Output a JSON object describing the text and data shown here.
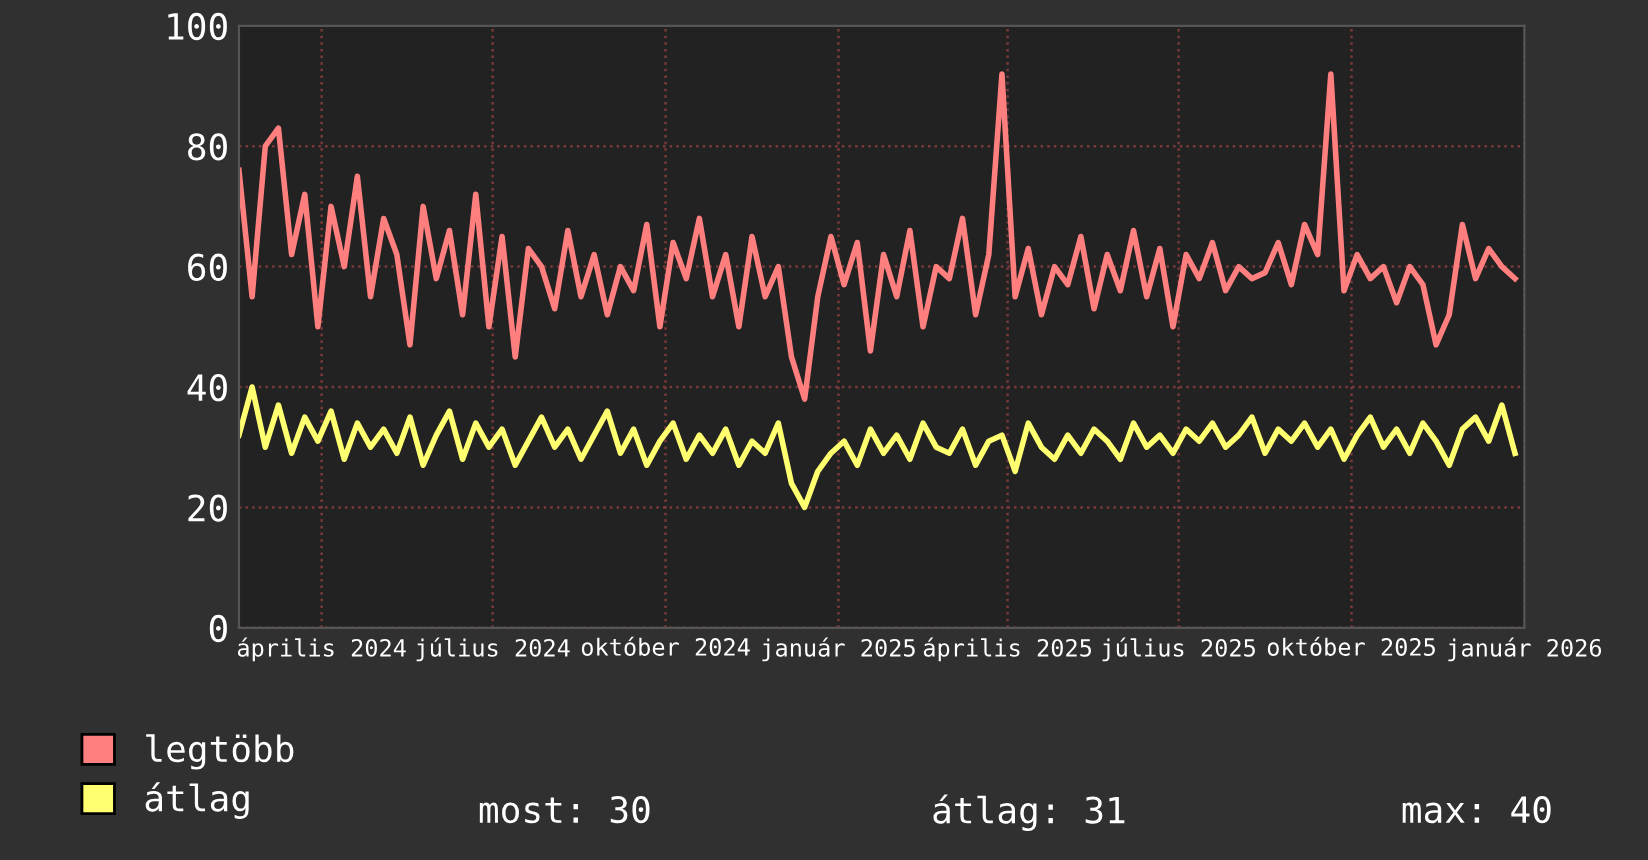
{
  "chart_data": {
    "type": "line",
    "x": [
      "2024-02-17",
      "2024-02-24",
      "2024-03-02",
      "2024-03-09",
      "2024-03-16",
      "2024-03-23",
      "2024-03-30",
      "2024-04-06",
      "2024-04-13",
      "2024-04-20",
      "2024-04-27",
      "2024-05-04",
      "2024-05-11",
      "2024-05-18",
      "2024-05-25",
      "2024-06-01",
      "2024-06-08",
      "2024-06-15",
      "2024-06-22",
      "2024-06-29",
      "2024-07-06",
      "2024-07-13",
      "2024-07-20",
      "2024-07-27",
      "2024-08-03",
      "2024-08-10",
      "2024-08-17",
      "2024-08-24",
      "2024-08-31",
      "2024-09-07",
      "2024-09-14",
      "2024-09-21",
      "2024-09-28",
      "2024-10-05",
      "2024-10-12",
      "2024-10-19",
      "2024-10-26",
      "2024-11-02",
      "2024-11-09",
      "2024-11-16",
      "2024-11-23",
      "2024-11-30",
      "2024-12-07",
      "2024-12-14",
      "2024-12-21",
      "2024-12-28",
      "2025-01-04",
      "2025-01-11",
      "2025-01-18",
      "2025-01-25",
      "2025-02-01",
      "2025-02-08",
      "2025-02-15",
      "2025-02-22",
      "2025-03-01",
      "2025-03-08",
      "2025-03-15",
      "2025-03-22",
      "2025-03-29",
      "2025-04-05",
      "2025-04-12",
      "2025-04-19",
      "2025-04-26",
      "2025-05-03",
      "2025-05-10",
      "2025-05-17",
      "2025-05-24",
      "2025-05-31",
      "2025-06-07",
      "2025-06-14",
      "2025-06-21",
      "2025-06-28",
      "2025-07-05",
      "2025-07-12",
      "2025-07-19",
      "2025-07-26",
      "2025-08-02",
      "2025-08-09",
      "2025-08-16",
      "2025-08-23",
      "2025-08-30",
      "2025-09-06",
      "2025-09-13",
      "2025-09-20",
      "2025-09-27",
      "2025-10-04",
      "2025-10-11",
      "2025-10-18",
      "2025-10-25",
      "2025-11-01",
      "2025-11-08",
      "2025-11-15",
      "2025-11-22",
      "2025-11-29",
      "2025-12-06",
      "2025-12-13",
      "2025-12-20",
      "2025-12-27"
    ],
    "series": [
      {
        "name": "legtöbb",
        "color": "#ff7f7f",
        "values": [
          76,
          55,
          80,
          83,
          62,
          72,
          50,
          70,
          60,
          75,
          55,
          68,
          62,
          47,
          70,
          58,
          66,
          52,
          72,
          50,
          65,
          45,
          63,
          60,
          53,
          66,
          55,
          62,
          52,
          60,
          56,
          67,
          50,
          64,
          58,
          68,
          55,
          62,
          50,
          65,
          55,
          60,
          45,
          38,
          55,
          65,
          57,
          64,
          46,
          62,
          55,
          66,
          50,
          60,
          58,
          68,
          52,
          62,
          92,
          55,
          63,
          52,
          60,
          57,
          65,
          53,
          62,
          56,
          66,
          55,
          63,
          50,
          62,
          58,
          64,
          56,
          60,
          58,
          59,
          64,
          57,
          67,
          62,
          92,
          56,
          62,
          58,
          60,
          54,
          60,
          57,
          47,
          52,
          67,
          58,
          63,
          60,
          58
        ]
      },
      {
        "name": "átlag",
        "color": "#ffff70",
        "values": [
          32,
          40,
          30,
          37,
          29,
          35,
          31,
          36,
          28,
          34,
          30,
          33,
          29,
          35,
          27,
          32,
          36,
          28,
          34,
          30,
          33,
          27,
          31,
          35,
          30,
          33,
          28,
          32,
          36,
          29,
          33,
          27,
          31,
          34,
          28,
          32,
          29,
          33,
          27,
          31,
          29,
          34,
          24,
          20,
          26,
          29,
          31,
          27,
          33,
          29,
          32,
          28,
          34,
          30,
          29,
          33,
          27,
          31,
          32,
          26,
          34,
          30,
          28,
          32,
          29,
          33,
          31,
          28,
          34,
          30,
          32,
          29,
          33,
          31,
          34,
          30,
          32,
          35,
          29,
          33,
          31,
          34,
          30,
          33,
          28,
          32,
          35,
          30,
          33,
          29,
          34,
          31,
          27,
          33,
          35,
          31,
          37,
          29
        ]
      }
    ],
    "xlim": [
      "2024-02-17",
      "2026-01-01"
    ],
    "xticks": [
      {
        "value": "2024-04-01",
        "label": "április 2024"
      },
      {
        "value": "2024-07-01",
        "label": "július 2024"
      },
      {
        "value": "2024-10-01",
        "label": "október 2024"
      },
      {
        "value": "2025-01-01",
        "label": "január 2025"
      },
      {
        "value": "2025-04-01",
        "label": "április 2025"
      },
      {
        "value": "2025-07-01",
        "label": "július 2025"
      },
      {
        "value": "2025-10-01",
        "label": "október 2025"
      },
      {
        "value": "2026-01-01",
        "label": "január 2026"
      }
    ],
    "ylim": [
      0,
      100
    ],
    "yticks": [
      0,
      20,
      40,
      60,
      80,
      100
    ],
    "grid": true,
    "legend": "bottom left",
    "line_style": "solid",
    "marker": "none",
    "annotations": [
      "most: 30",
      "átlag: 31",
      "max: 40"
    ]
  }
}
